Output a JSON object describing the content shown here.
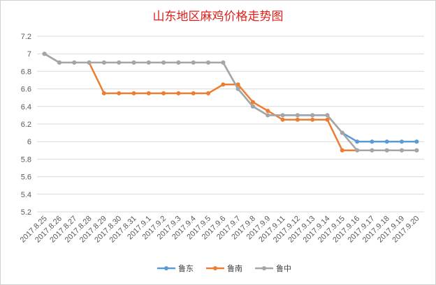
{
  "chart_data": {
    "type": "line",
    "title": "山东地区麻鸡价格走势图",
    "xlabel": "",
    "ylabel": "",
    "ylim": [
      5.2,
      7.2
    ],
    "yticks": [
      "7.2",
      "7",
      "6.8",
      "6.6",
      "6.4",
      "6.2",
      "6",
      "5.8",
      "5.6",
      "5.4",
      "5.2"
    ],
    "grid": true,
    "legend_position": "bottom",
    "categories": [
      "2017.8.25",
      "2017.8.26",
      "2017.8.27",
      "2017.8.28",
      "2017.8.29",
      "2017.8.30",
      "2017.8.31",
      "2017.9.1",
      "2017.9.2",
      "2017.9.3",
      "2017.9.4",
      "2017.9.5",
      "2017.9.6",
      "2017.9.7",
      "2017.9.8",
      "2017.9.9",
      "2017.9.11",
      "2017.9.12",
      "2017.9.13",
      "2017.9.14",
      "2017.9.15",
      "2017.9.16",
      "2017.9.17",
      "2017.9.18",
      "2017.9.19",
      "2017.9.20"
    ],
    "series": [
      {
        "name": "鲁东",
        "color": "#5b9bd5",
        "values": [
          7.0,
          6.9,
          6.9,
          6.9,
          6.9,
          6.9,
          6.9,
          6.9,
          6.9,
          6.9,
          6.9,
          6.9,
          6.9,
          6.6,
          6.4,
          6.3,
          6.3,
          6.3,
          6.3,
          6.3,
          6.1,
          6.0,
          6.0,
          6.0,
          6.0,
          6.0
        ]
      },
      {
        "name": "鲁南",
        "color": "#ed7d31",
        "values": [
          7.0,
          6.9,
          6.9,
          6.9,
          6.55,
          6.55,
          6.55,
          6.55,
          6.55,
          6.55,
          6.55,
          6.55,
          6.65,
          6.65,
          6.45,
          6.35,
          6.25,
          6.25,
          6.25,
          6.25,
          5.9,
          5.9,
          5.9,
          5.9,
          5.9,
          5.9
        ]
      },
      {
        "name": "鲁中",
        "color": "#a5a5a5",
        "values": [
          7.0,
          6.9,
          6.9,
          6.9,
          6.9,
          6.9,
          6.9,
          6.9,
          6.9,
          6.9,
          6.9,
          6.9,
          6.9,
          6.6,
          6.4,
          6.3,
          6.3,
          6.3,
          6.3,
          6.3,
          6.1,
          5.9,
          5.9,
          5.9,
          5.9,
          5.9
        ]
      }
    ]
  }
}
